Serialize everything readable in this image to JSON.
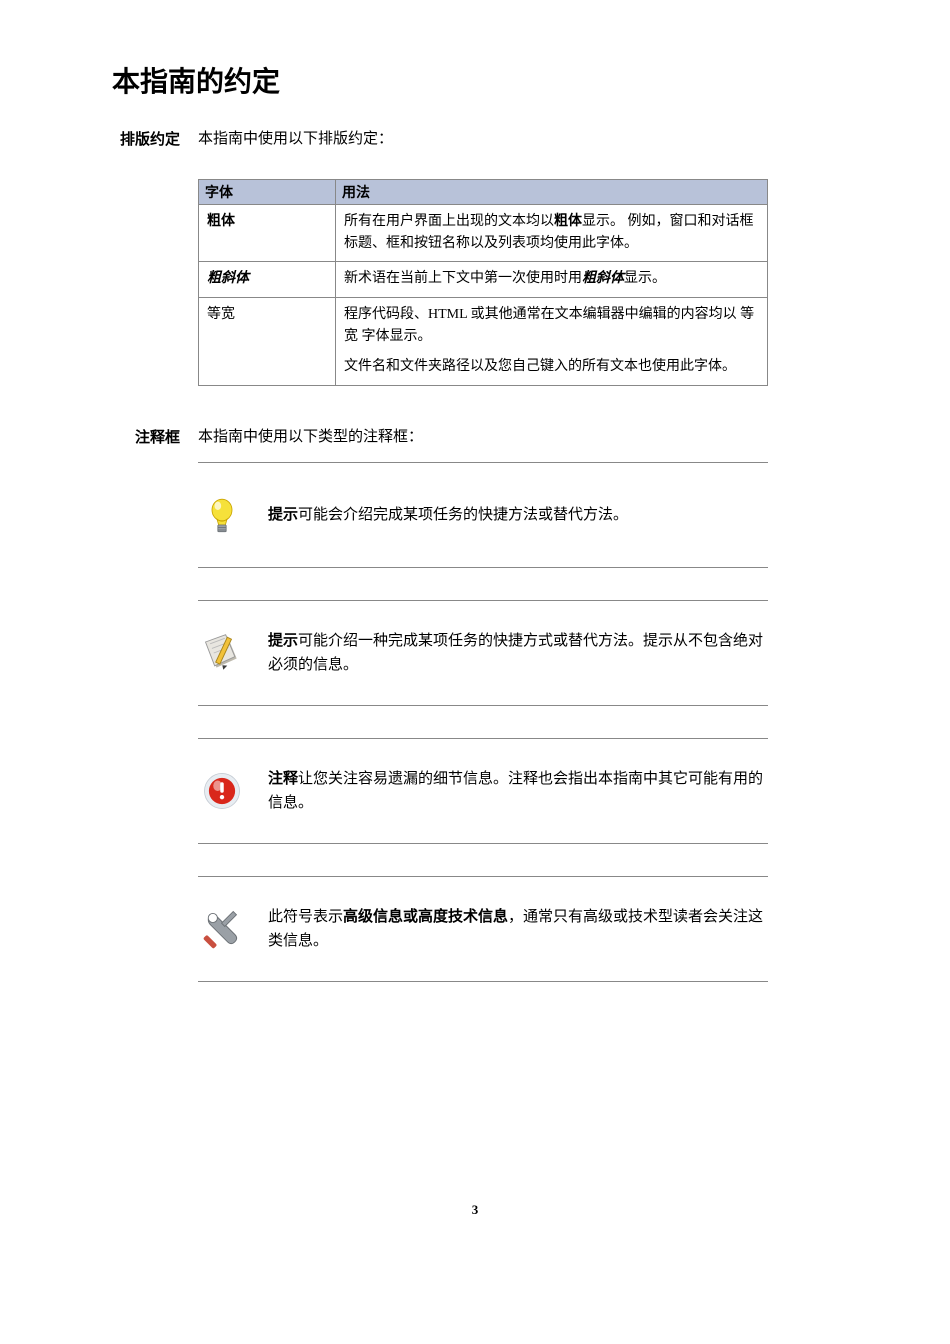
{
  "title": "本指南的约定",
  "sections": {
    "typesetting": {
      "label": "排版约定",
      "intro": "本指南中使用以下排版约定："
    },
    "notebox": {
      "label": "注释框",
      "intro": "本指南中使用以下类型的注释框："
    }
  },
  "table": {
    "header_col1": "字体",
    "header_col2": "用法",
    "header_bg": "#b8c2d9",
    "border_color": "#888888",
    "rows": [
      {
        "typeface_label": "粗体",
        "typeface_style": "bold",
        "usage_pre": "所有在用户界面上出现的文本均以",
        "usage_em": "粗体",
        "usage_em_style": "bold",
        "usage_post": "显示。 例如，窗口和对话框标题、框和按钮名称以及列表项均使用此字体。"
      },
      {
        "typeface_label": "粗斜体",
        "typeface_style": "bolditalic",
        "usage_pre": "新术语在当前上下文中第一次使用时用",
        "usage_em": "粗斜体",
        "usage_em_style": "bolditalic",
        "usage_post": "显示。"
      },
      {
        "typeface_label": "等宽",
        "typeface_style": "mono",
        "usage_pre": "程序代码段、HTML 或其他通常在文本编辑器中编辑的内容均以 ",
        "usage_em": "等宽",
        "usage_em_style": "mono",
        "usage_post": " 字体显示。",
        "usage_extra": "文件名和文件夹路径以及您自己键入的所有文本也使用此字体。"
      }
    ]
  },
  "notes": [
    {
      "icon": "lightbulb",
      "strong": "提示",
      "text": "可能会介绍完成某项任务的快捷方法或替代方法。"
    },
    {
      "icon": "notepad",
      "strong": "提示",
      "text": "可能介绍一种完成某项任务的快捷方式或替代方法。提示从不包含绝对必须的信息。"
    },
    {
      "icon": "alert",
      "strong": "注释",
      "text": "让您关注容易遗漏的细节信息。注释也会指出本指南中其它可能有用的信息。"
    },
    {
      "icon": "tools",
      "pre": "此符号表示",
      "strong": "高级信息或高度技术信息",
      "text": "，通常只有高级或技术型读者会关注这类信息。"
    }
  ],
  "icon_colors": {
    "lightbulb_fill": "#f6e13a",
    "lightbulb_base": "#9aa0a6",
    "notepad_paper": "#e8e6e0",
    "notepad_shadow": "#bdb9ad",
    "notepad_pencil_body": "#f2c23a",
    "notepad_pencil_tip": "#3a3a3a",
    "alert_outer": "#e8edf2",
    "alert_red": "#d9271b",
    "alert_shine": "#ffffff",
    "tools_metal": "#9aa0a6",
    "tools_handle": "#c94f3f"
  },
  "page_number": "3",
  "background_color": "#ffffff",
  "text_color": "#000000"
}
